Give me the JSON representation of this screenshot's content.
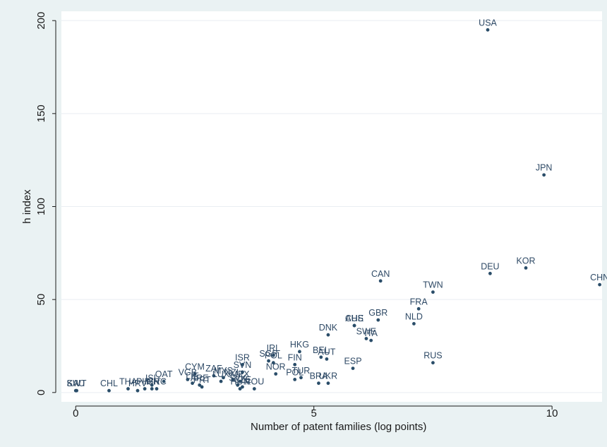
{
  "colors": {
    "outer_background": "#eaf2f3",
    "plot_background": "#ffffff",
    "marker": "#2a4d69",
    "label": "#2f4a66",
    "grid": "#e9eef2",
    "axis": "#1a1a1a"
  },
  "chart_data": {
    "type": "scatter",
    "title": "",
    "xlabel": "Number of patent families (log points)",
    "ylabel": "h index",
    "xlim": [
      -0.3,
      11.05
    ],
    "ylim": [
      -5,
      205
    ],
    "xticks": [
      0,
      5,
      10
    ],
    "xtick_labels": [
      "0",
      "5",
      "10"
    ],
    "yticks": [
      0,
      50,
      100,
      150,
      200
    ],
    "ytick_labels": [
      "0",
      "50",
      "100",
      "150",
      "200"
    ],
    "grid": "horizontal",
    "legend": "none",
    "points": [
      {
        "label": "USA",
        "x": 8.65,
        "y": 195
      },
      {
        "label": "JPN",
        "x": 9.83,
        "y": 117
      },
      {
        "label": "KOR",
        "x": 9.45,
        "y": 67
      },
      {
        "label": "DEU",
        "x": 8.7,
        "y": 64
      },
      {
        "label": "CHN",
        "x": 11.0,
        "y": 58
      },
      {
        "label": "CAN",
        "x": 6.4,
        "y": 60
      },
      {
        "label": "TWN",
        "x": 7.5,
        "y": 54
      },
      {
        "label": "FRA",
        "x": 7.2,
        "y": 45
      },
      {
        "label": "NLD",
        "x": 7.1,
        "y": 37
      },
      {
        "label": "GBR",
        "x": 6.35,
        "y": 39
      },
      {
        "label": "CHE",
        "x": 5.85,
        "y": 36
      },
      {
        "label": "AUS",
        "x": 5.85,
        "y": 36
      },
      {
        "label": "SWE",
        "x": 6.1,
        "y": 29
      },
      {
        "label": "ITA",
        "x": 6.2,
        "y": 28
      },
      {
        "label": "DNK",
        "x": 5.3,
        "y": 31
      },
      {
        "label": "RUS",
        "x": 7.5,
        "y": 16
      },
      {
        "label": "ESP",
        "x": 5.82,
        "y": 13
      },
      {
        "label": "HKG",
        "x": 4.7,
        "y": 22
      },
      {
        "label": "BEL",
        "x": 5.15,
        "y": 19
      },
      {
        "label": "AUT",
        "x": 5.27,
        "y": 18
      },
      {
        "label": "FIN",
        "x": 4.6,
        "y": 15
      },
      {
        "label": "IRL",
        "x": 4.15,
        "y": 20
      },
      {
        "label": "SGP",
        "x": 4.05,
        "y": 17
      },
      {
        "label": "POL",
        "x": 4.15,
        "y": 16
      },
      {
        "label": "NOR",
        "x": 4.2,
        "y": 10
      },
      {
        "label": "TUR",
        "x": 4.73,
        "y": 8
      },
      {
        "label": "POL",
        "x": 4.6,
        "y": 7
      },
      {
        "label": "BRA",
        "x": 5.1,
        "y": 5
      },
      {
        "label": "UKR",
        "x": 5.3,
        "y": 5
      },
      {
        "label": "ISR",
        "x": 3.5,
        "y": 15
      },
      {
        "label": "SVN",
        "x": 3.5,
        "y": 11
      },
      {
        "label": "CYM",
        "x": 2.5,
        "y": 10
      },
      {
        "label": "VGB",
        "x": 2.35,
        "y": 7
      },
      {
        "label": "ZAF",
        "x": 2.9,
        "y": 9
      },
      {
        "label": "MYS",
        "x": 3.1,
        "y": 8
      },
      {
        "label": "LUX",
        "x": 3.05,
        "y": 6
      },
      {
        "label": "NZL",
        "x": 3.3,
        "y": 7
      },
      {
        "label": "MEX",
        "x": 3.45,
        "y": 6
      },
      {
        "label": "SVK",
        "x": 3.4,
        "y": 4
      },
      {
        "label": "CZE",
        "x": 3.5,
        "y": 3
      },
      {
        "label": "HUN",
        "x": 3.45,
        "y": 2
      },
      {
        "label": "ROU",
        "x": 3.75,
        "y": 2
      },
      {
        "label": "QAT",
        "x": 1.85,
        "y": 6
      },
      {
        "label": "LIE",
        "x": 2.45,
        "y": 5
      },
      {
        "label": "ARE",
        "x": 2.6,
        "y": 4
      },
      {
        "label": "PRT",
        "x": 2.65,
        "y": 3
      },
      {
        "label": "ISL",
        "x": 1.6,
        "y": 4
      },
      {
        "label": "IRN",
        "x": 1.6,
        "y": 2
      },
      {
        "label": "GRC",
        "x": 1.7,
        "y": 2
      },
      {
        "label": "PHL",
        "x": 1.45,
        "y": 2
      },
      {
        "label": "HRV",
        "x": 1.3,
        "y": 1
      },
      {
        "label": "THA",
        "x": 1.1,
        "y": 2
      },
      {
        "label": "CHL",
        "x": 0.7,
        "y": 1
      },
      {
        "label": "KWT",
        "x": 0.02,
        "y": 1
      },
      {
        "label": "SAU",
        "x": 0.0,
        "y": 1
      }
    ]
  }
}
